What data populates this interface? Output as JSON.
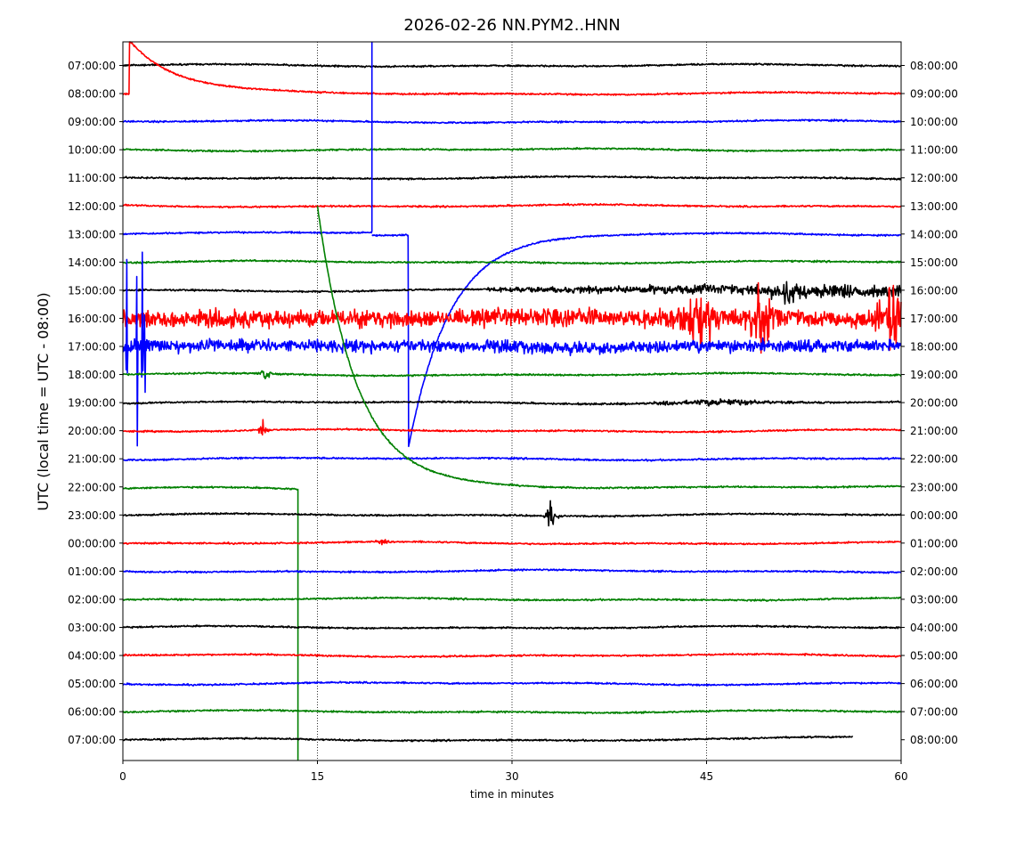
{
  "chart_data": {
    "type": "line",
    "title": "2026-02-26 NN.PYM2..HNN",
    "xlabel": "time in minutes",
    "ylabel": "UTC (local time = UTC - 08:00)",
    "xlim": [
      0,
      60
    ],
    "x_ticks": [
      "0",
      "15",
      "30",
      "45",
      "60"
    ],
    "grid": "vertical dotted lines at 15, 30, 45",
    "left_labels": [
      "07:00:00",
      "08:00:00",
      "09:00:00",
      "10:00:00",
      "11:00:00",
      "12:00:00",
      "13:00:00",
      "14:00:00",
      "15:00:00",
      "16:00:00",
      "17:00:00",
      "18:00:00",
      "19:00:00",
      "20:00:00",
      "21:00:00",
      "22:00:00",
      "23:00:00",
      "00:00:00",
      "01:00:00",
      "02:00:00",
      "03:00:00",
      "04:00:00",
      "05:00:00",
      "06:00:00",
      "07:00:00"
    ],
    "right_labels": [
      "08:00:00",
      "09:00:00",
      "10:00:00",
      "11:00:00",
      "12:00:00",
      "13:00:00",
      "14:00:00",
      "15:00:00",
      "16:00:00",
      "17:00:00",
      "18:00:00",
      "19:00:00",
      "20:00:00",
      "21:00:00",
      "22:00:00",
      "23:00:00",
      "00:00:00",
      "01:00:00",
      "02:00:00",
      "03:00:00",
      "04:00:00",
      "05:00:00",
      "06:00:00",
      "07:00:00",
      "08:00:00"
    ],
    "color_cycle": [
      "#000000",
      "#ff0000",
      "#0000ff",
      "#008000"
    ],
    "row_end_minutes": [
      60,
      60,
      60,
      60,
      60,
      60,
      60,
      60,
      60,
      60,
      60,
      60,
      60,
      60,
      60,
      60,
      60,
      60,
      60,
      60,
      60,
      60,
      60,
      60,
      56.3
    ],
    "events": [
      {
        "row": 1,
        "kind": "decay",
        "start": 0.5,
        "end": 60,
        "amp": -1.9,
        "tau": 3.5
      },
      {
        "row": 6,
        "kind": "step",
        "at": 19.2,
        "start": 0,
        "end": 60
      },
      {
        "row": 6,
        "kind": "decay",
        "start": 22.0,
        "end": 60,
        "amp": 7.6,
        "tau": 3.2
      },
      {
        "row": 8,
        "kind": "noise_ramp",
        "start": 28,
        "end": 60,
        "amp0": 0.06,
        "amp1": 0.2
      },
      {
        "row": 8,
        "kind": "burst",
        "at": 51.5,
        "amp": 0.35,
        "width": 1.2
      },
      {
        "row": 9,
        "kind": "noise",
        "start": 0,
        "end": 60,
        "amp": 0.25
      },
      {
        "row": 9,
        "kind": "burst",
        "at": 44.5,
        "amp": 0.9,
        "width": 1.4
      },
      {
        "row": 9,
        "kind": "burst",
        "at": 49.3,
        "amp": 1.3,
        "width": 0.6
      },
      {
        "row": 9,
        "kind": "burst",
        "at": 59.5,
        "amp": 2.0,
        "width": 0.7
      },
      {
        "row": 10,
        "kind": "noise",
        "start": 0,
        "end": 60,
        "amp": 0.18
      },
      {
        "row": 10,
        "kind": "spike",
        "at": 0.3,
        "amp": 3.2
      },
      {
        "row": 10,
        "kind": "spike",
        "at": 1.1,
        "amp": 4.8
      },
      {
        "row": 10,
        "kind": "spike",
        "at": 1.5,
        "amp": 3.5
      },
      {
        "row": 10,
        "kind": "spike",
        "at": 1.7,
        "amp": 2.0
      },
      {
        "row": 11,
        "kind": "burst",
        "at": 11.0,
        "amp": 0.25,
        "width": 0.3
      },
      {
        "row": 12,
        "kind": "burst",
        "at": 46.0,
        "amp": 0.12,
        "width": 4.0
      },
      {
        "row": 13,
        "kind": "burst",
        "at": 10.8,
        "amp": 0.3,
        "width": 0.2
      },
      {
        "row": 15,
        "kind": "drop",
        "at": 13.5,
        "start": 0,
        "end": 60
      },
      {
        "row": 15,
        "kind": "decay",
        "start": 15.0,
        "end": 60,
        "amp": -10.0,
        "tau": 3.0
      },
      {
        "row": 16,
        "kind": "burst",
        "at": 33.0,
        "amp": 0.6,
        "width": 0.25
      },
      {
        "row": 17,
        "kind": "burst",
        "at": 20.0,
        "amp": 0.1,
        "width": 0.3
      },
      {
        "row": 24,
        "kind": "drift",
        "start": 48,
        "end": 56.3,
        "amp": 0.1
      }
    ]
  }
}
